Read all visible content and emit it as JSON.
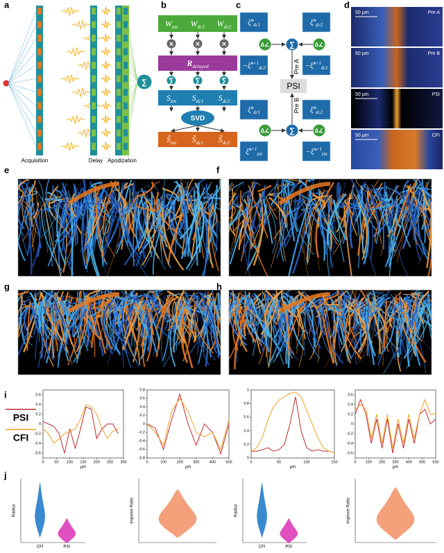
{
  "symbols": {
    "sum": "∑",
    "multiply": "×",
    "angle": "Δ∠"
  },
  "panel_a": {
    "label": "a",
    "captions": [
      "Acquisition",
      "Delay",
      "Apodization"
    ]
  },
  "panel_b": {
    "label": "b",
    "weights": [
      {
        "main": "W",
        "sub": "zm"
      },
      {
        "main": "W",
        "sub": "dc1"
      },
      {
        "main": "W",
        "sub": "dc2"
      }
    ],
    "delayed": {
      "main": "R",
      "sub": "delayed"
    },
    "signals": [
      {
        "main": "S",
        "sub": "zm"
      },
      {
        "main": "S",
        "sub": "dc1"
      },
      {
        "main": "S",
        "sub": "dc2"
      }
    ],
    "svd": "SVD",
    "outputs": [
      {
        "main": "Š",
        "sub": "zm"
      },
      {
        "main": "Š",
        "sub": "dc1"
      },
      {
        "main": "Š",
        "sub": "dc2"
      }
    ]
  },
  "panel_c": {
    "label": "c",
    "psi": "PSI",
    "pre_a": "Pre A",
    "pre_b": "Pre B",
    "top": [
      {
        "main": "ξ̃",
        "sup": "n",
        "sub": "dc1"
      },
      {
        "main": "ξ̃",
        "sup": "n",
        "sub": "dc2"
      },
      {
        "pre": "−",
        "main": "ξ̃",
        "sup": "n+1",
        "sub": "dc2"
      },
      {
        "pre": "−",
        "main": "ξ̃",
        "sup": "n+1",
        "sub": "dc1"
      }
    ],
    "bottom": [
      {
        "main": "ξ̃",
        "sup": "n",
        "sub": "dc1"
      },
      {
        "main": "ξ̃",
        "sup": "n",
        "sub": "dc2"
      },
      {
        "main": "ξ̃",
        "sup": "n+1",
        "sub": "zm"
      },
      {
        "pre": "−",
        "main": "ξ̃",
        "sup": "n+1",
        "sub": "zm"
      }
    ]
  },
  "panel_d": {
    "label": "d",
    "scale_bar": "50 µm",
    "images": [
      "Pre A",
      "Pre B",
      "PSI",
      "CFI"
    ]
  },
  "panel_e": {
    "label": "e"
  },
  "panel_f": {
    "label": "f"
  },
  "panel_g": {
    "label": "g"
  },
  "panel_h": {
    "label": "h"
  },
  "panel_i": {
    "label": "i",
    "legend": [
      {
        "label": "PSI",
        "color": "#c0282d"
      },
      {
        "label": "CFI",
        "color": "#f0a020"
      }
    ],
    "plots": [
      {
        "type": "line",
        "xlabel": "µm",
        "xlim": [
          0,
          300
        ],
        "xticks": [
          0,
          50,
          100,
          150,
          200,
          250,
          300
        ],
        "ylim": [
          -0.7,
          0.7
        ],
        "yticks": [
          -0.6,
          -0.4,
          -0.2,
          0,
          0.2,
          0.4,
          0.6
        ],
        "x": [
          0,
          20,
          40,
          60,
          80,
          100,
          120,
          140,
          160,
          180,
          200,
          220,
          240,
          260,
          280
        ],
        "series": [
          {
            "color": "#c0282d",
            "values": [
              0.05,
              0,
              -0.05,
              -0.2,
              -0.6,
              -0.1,
              -0.5,
              -0.1,
              0.35,
              0.3,
              -0.3,
              -0.1,
              0,
              0,
              -0.2
            ]
          },
          {
            "color": "#f0a020",
            "values": [
              -0.1,
              -0.2,
              -0.4,
              -0.3,
              -0.2,
              -0.15,
              -0.1,
              0.1,
              0.4,
              0.35,
              0.2,
              -0.1,
              -0.3,
              -0.15,
              -0.1
            ]
          }
        ]
      },
      {
        "type": "line",
        "xlabel": "µm",
        "xlim": [
          0,
          500
        ],
        "xticks": [
          0,
          100,
          200,
          300,
          400,
          500
        ],
        "ylim": [
          -0.8,
          0.8
        ],
        "yticks": [
          -0.8,
          -0.6,
          -0.4,
          -0.2,
          0,
          0.2,
          0.4,
          0.6,
          0.8
        ],
        "x": [
          0,
          50,
          100,
          150,
          200,
          250,
          300,
          350,
          400,
          450,
          500
        ],
        "series": [
          {
            "color": "#c0282d",
            "values": [
              0,
              -0.1,
              -0.6,
              0.1,
              0.7,
              0,
              -0.5,
              0,
              -0.2,
              -0.7,
              0
            ]
          },
          {
            "color": "#f0a020",
            "values": [
              0,
              -0.2,
              -0.5,
              0.3,
              0.6,
              0.3,
              -0.2,
              -0.3,
              -0.2,
              -0.6,
              0.1
            ]
          }
        ]
      },
      {
        "type": "line",
        "xlabel": "µm",
        "xlim": [
          0,
          150
        ],
        "xticks": [
          0,
          50,
          100,
          150
        ],
        "ylim": [
          0,
          1
        ],
        "yticks": [
          0,
          0.2,
          0.4,
          0.6,
          0.8,
          1
        ],
        "x": [
          0,
          10,
          20,
          30,
          40,
          50,
          60,
          70,
          80,
          90,
          100,
          110,
          120,
          130,
          140,
          150
        ],
        "series": [
          {
            "color": "#c0282d",
            "values": [
              0.1,
              0.1,
              0.12,
              0.15,
              0.1,
              0.12,
              0.2,
              0.5,
              0.9,
              0.4,
              0.15,
              0.1,
              0.12,
              0.1,
              0.1,
              0.08
            ]
          },
          {
            "color": "#f0a020",
            "values": [
              0.1,
              0.15,
              0.3,
              0.55,
              0.75,
              0.85,
              0.9,
              0.95,
              0.97,
              0.9,
              0.7,
              0.5,
              0.3,
              0.15,
              0.1,
              0.08
            ]
          }
        ]
      },
      {
        "type": "line",
        "xlabel": "µm",
        "xlim": [
          0,
          600
        ],
        "xticks": [
          0,
          100,
          200,
          300,
          400,
          500,
          600
        ],
        "ylim": [
          -0.7,
          0.7
        ],
        "yticks": [
          -0.6,
          -0.4,
          -0.2,
          0,
          0.2,
          0.4,
          0.6
        ],
        "x": [
          0,
          40,
          80,
          120,
          160,
          200,
          240,
          280,
          320,
          360,
          400,
          440,
          480,
          520,
          560,
          600
        ],
        "series": [
          {
            "color": "#c0282d",
            "values": [
              0.2,
              0.5,
              0.2,
              -0.4,
              0.1,
              -0.5,
              0.1,
              -0.6,
              0,
              -0.5,
              0.1,
              -0.4,
              0.2,
              0.3,
              0,
              0.1
            ]
          },
          {
            "color": "#f0a020",
            "values": [
              0.3,
              0.4,
              0.3,
              -0.3,
              0.2,
              -0.4,
              0.2,
              -0.5,
              0.1,
              -0.4,
              0.2,
              -0.3,
              0.2,
              0.5,
              0.2,
              0.2
            ]
          }
        ]
      }
    ]
  },
  "panel_j": {
    "label": "j",
    "plots": [
      {
        "ylabel": "Radius",
        "categories": [
          "CFI",
          "PSI"
        ]
      },
      {
        "ylabel": "Improve Ratio"
      },
      {
        "ylabel": "Radius",
        "categories": [
          "CFI",
          "PSI"
        ]
      },
      {
        "ylabel": "Improve Ratio"
      }
    ]
  }
}
